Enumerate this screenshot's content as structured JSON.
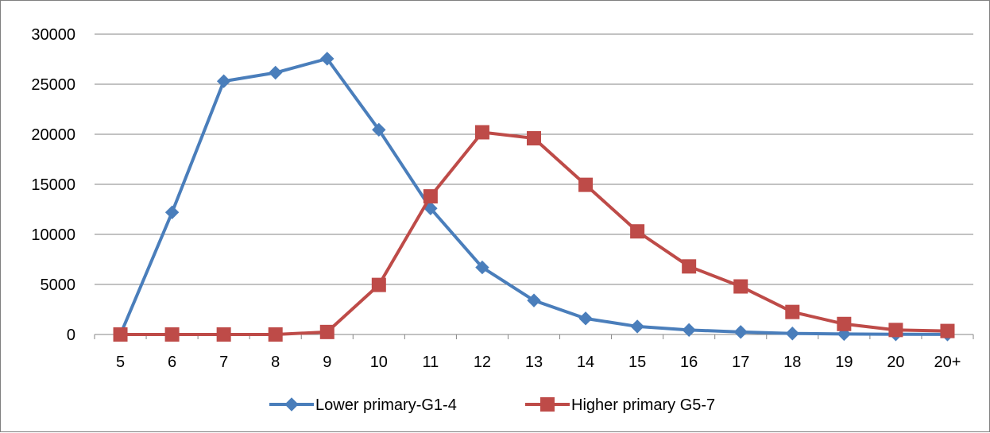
{
  "chart_data": {
    "type": "line",
    "title": "",
    "xlabel": "",
    "ylabel": "",
    "categories": [
      "5",
      "6",
      "7",
      "8",
      "9",
      "10",
      "11",
      "12",
      "13",
      "14",
      "15",
      "16",
      "17",
      "18",
      "19",
      "20",
      "20+"
    ],
    "ylim": [
      0,
      30000
    ],
    "yticks": [
      0,
      5000,
      10000,
      15000,
      20000,
      25000,
      30000
    ],
    "grid": true,
    "legend_position": "bottom",
    "series": [
      {
        "name": "Lower primary-G1-4",
        "color": "#4a7ebb",
        "marker": "diamond",
        "values": [
          0,
          12200,
          25300,
          26150,
          27550,
          20450,
          12600,
          6700,
          3400,
          1600,
          800,
          450,
          250,
          100,
          50,
          20,
          10
        ]
      },
      {
        "name": "Higher primary G5-7",
        "color": "#be4b48",
        "marker": "square",
        "values": [
          0,
          0,
          0,
          0,
          250,
          4950,
          13800,
          20200,
          19600,
          14950,
          10300,
          6800,
          4800,
          2250,
          1050,
          450,
          350
        ]
      }
    ]
  }
}
